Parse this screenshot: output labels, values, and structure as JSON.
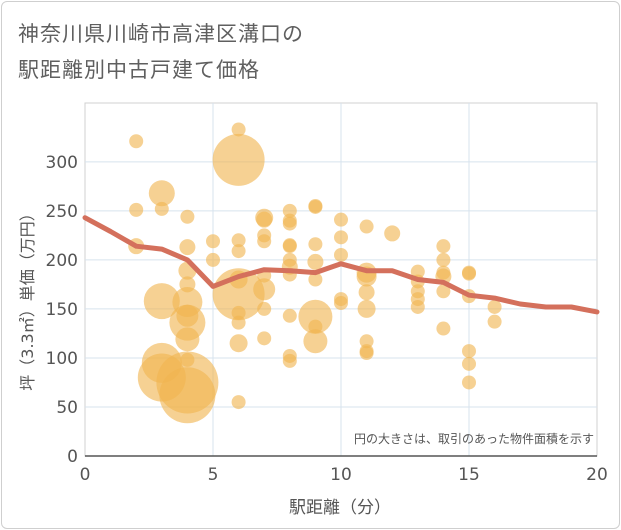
{
  "chart_data": {
    "type": "scatter",
    "title_line1": "神奈川県川崎市高津区溝口の",
    "title_line2": "駅距離別中古戸建て価格",
    "xlabel": "駅距離（分）",
    "ylabel": "坪（3.3㎡）単価（万円）",
    "note": "円の大きさは、取引のあった物件面積を示す",
    "xlim": [
      0,
      20
    ],
    "ylim": [
      0,
      360
    ],
    "x_ticks": [
      0,
      5,
      10,
      15,
      20
    ],
    "y_ticks": [
      0,
      50,
      100,
      150,
      200,
      250,
      300
    ],
    "grid": true,
    "colors": {
      "bubble": "#f0b551",
      "line": "#d4705c",
      "plot_bg": "#ffffff"
    },
    "series": [
      {
        "kind": "bubbles",
        "points": [
          {
            "x": 2,
            "y": 321,
            "s": 7
          },
          {
            "x": 2,
            "y": 251,
            "s": 7
          },
          {
            "x": 2,
            "y": 214,
            "s": 8
          },
          {
            "x": 3,
            "y": 268,
            "s": 13
          },
          {
            "x": 3,
            "y": 252,
            "s": 7
          },
          {
            "x": 3,
            "y": 158,
            "s": 18
          },
          {
            "x": 3,
            "y": 95,
            "s": 20
          },
          {
            "x": 3,
            "y": 80,
            "s": 24
          },
          {
            "x": 4,
            "y": 244,
            "s": 7
          },
          {
            "x": 4,
            "y": 213,
            "s": 8
          },
          {
            "x": 4,
            "y": 189,
            "s": 9
          },
          {
            "x": 4,
            "y": 175,
            "s": 8
          },
          {
            "x": 4,
            "y": 157,
            "s": 15
          },
          {
            "x": 4,
            "y": 143,
            "s": 11
          },
          {
            "x": 4,
            "y": 136,
            "s": 18
          },
          {
            "x": 4,
            "y": 119,
            "s": 12
          },
          {
            "x": 4,
            "y": 98,
            "s": 7
          },
          {
            "x": 4,
            "y": 75,
            "s": 31
          },
          {
            "x": 4,
            "y": 62,
            "s": 28
          },
          {
            "x": 5,
            "y": 219,
            "s": 7
          },
          {
            "x": 5,
            "y": 200,
            "s": 7
          },
          {
            "x": 6,
            "y": 333,
            "s": 7
          },
          {
            "x": 6,
            "y": 302,
            "s": 26
          },
          {
            "x": 6,
            "y": 220,
            "s": 7
          },
          {
            "x": 6,
            "y": 209,
            "s": 7
          },
          {
            "x": 6,
            "y": 180,
            "s": 9
          },
          {
            "x": 6,
            "y": 165,
            "s": 26
          },
          {
            "x": 6,
            "y": 146,
            "s": 7
          },
          {
            "x": 6,
            "y": 136,
            "s": 7
          },
          {
            "x": 6,
            "y": 115,
            "s": 9
          },
          {
            "x": 6,
            "y": 55,
            "s": 7
          },
          {
            "x": 7,
            "y": 243,
            "s": 9
          },
          {
            "x": 7,
            "y": 241,
            "s": 8
          },
          {
            "x": 7,
            "y": 225,
            "s": 7
          },
          {
            "x": 7,
            "y": 219,
            "s": 7
          },
          {
            "x": 7,
            "y": 184,
            "s": 7
          },
          {
            "x": 7,
            "y": 170,
            "s": 11
          },
          {
            "x": 7,
            "y": 150,
            "s": 7
          },
          {
            "x": 7,
            "y": 120,
            "s": 7
          },
          {
            "x": 8,
            "y": 250,
            "s": 7
          },
          {
            "x": 8,
            "y": 240,
            "s": 7
          },
          {
            "x": 8,
            "y": 237,
            "s": 7
          },
          {
            "x": 8,
            "y": 215,
            "s": 7
          },
          {
            "x": 8,
            "y": 214,
            "s": 7
          },
          {
            "x": 8,
            "y": 200,
            "s": 7
          },
          {
            "x": 8,
            "y": 193,
            "s": 8
          },
          {
            "x": 8,
            "y": 185,
            "s": 7
          },
          {
            "x": 8,
            "y": 143,
            "s": 7
          },
          {
            "x": 8,
            "y": 102,
            "s": 7
          },
          {
            "x": 8,
            "y": 97,
            "s": 7
          },
          {
            "x": 9,
            "y": 255,
            "s": 7
          },
          {
            "x": 9,
            "y": 254,
            "s": 7
          },
          {
            "x": 9,
            "y": 216,
            "s": 7
          },
          {
            "x": 9,
            "y": 198,
            "s": 8
          },
          {
            "x": 9,
            "y": 180,
            "s": 7
          },
          {
            "x": 9,
            "y": 142,
            "s": 17
          },
          {
            "x": 9,
            "y": 132,
            "s": 7
          },
          {
            "x": 9,
            "y": 117,
            "s": 12
          },
          {
            "x": 10,
            "y": 241,
            "s": 7
          },
          {
            "x": 10,
            "y": 223,
            "s": 7
          },
          {
            "x": 10,
            "y": 205,
            "s": 7
          },
          {
            "x": 10,
            "y": 160,
            "s": 7
          },
          {
            "x": 10,
            "y": 156,
            "s": 7
          },
          {
            "x": 11,
            "y": 234,
            "s": 7
          },
          {
            "x": 11,
            "y": 187,
            "s": 10
          },
          {
            "x": 11,
            "y": 183,
            "s": 10
          },
          {
            "x": 11,
            "y": 167,
            "s": 8
          },
          {
            "x": 11,
            "y": 150,
            "s": 9
          },
          {
            "x": 11,
            "y": 117,
            "s": 7
          },
          {
            "x": 11,
            "y": 107,
            "s": 7
          },
          {
            "x": 11,
            "y": 105,
            "s": 7
          },
          {
            "x": 12,
            "y": 227,
            "s": 8
          },
          {
            "x": 13,
            "y": 188,
            "s": 7
          },
          {
            "x": 13,
            "y": 178,
            "s": 7
          },
          {
            "x": 13,
            "y": 168,
            "s": 7
          },
          {
            "x": 13,
            "y": 160,
            "s": 7
          },
          {
            "x": 13,
            "y": 152,
            "s": 7
          },
          {
            "x": 14,
            "y": 214,
            "s": 7
          },
          {
            "x": 14,
            "y": 200,
            "s": 7
          },
          {
            "x": 14,
            "y": 187,
            "s": 7
          },
          {
            "x": 14,
            "y": 183,
            "s": 8
          },
          {
            "x": 14,
            "y": 168,
            "s": 7
          },
          {
            "x": 14,
            "y": 130,
            "s": 7
          },
          {
            "x": 15,
            "y": 187,
            "s": 7
          },
          {
            "x": 15,
            "y": 186,
            "s": 7
          },
          {
            "x": 15,
            "y": 163,
            "s": 7
          },
          {
            "x": 15,
            "y": 107,
            "s": 7
          },
          {
            "x": 15,
            "y": 94,
            "s": 7
          },
          {
            "x": 15,
            "y": 75,
            "s": 7
          },
          {
            "x": 16,
            "y": 152,
            "s": 7
          },
          {
            "x": 16,
            "y": 137,
            "s": 7
          }
        ]
      },
      {
        "kind": "trend-line",
        "x": [
          0,
          1,
          2,
          3,
          4,
          5,
          6,
          7,
          8,
          9,
          10,
          11,
          12,
          13,
          14,
          15,
          16,
          17,
          18,
          19,
          20
        ],
        "y": [
          243,
          229,
          214,
          211,
          200,
          173,
          183,
          190,
          189,
          187,
          196,
          189,
          189,
          180,
          177,
          164,
          161,
          155,
          152,
          152,
          147
        ]
      }
    ]
  }
}
